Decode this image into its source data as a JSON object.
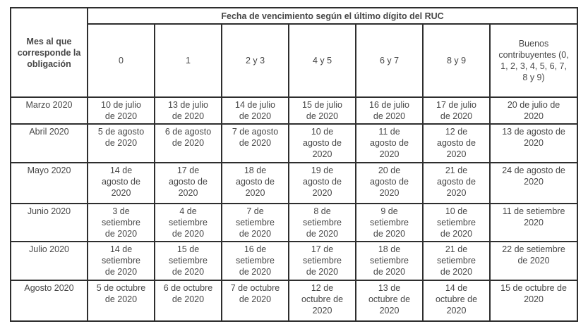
{
  "colors": {
    "background": "#ffffff",
    "text": "#474747",
    "header_text": "#3d3d3d",
    "border": "#2e2e2e"
  },
  "table": {
    "corner_header": "Mes al que corresponde la obligación",
    "span_header": "Fecha de vencimiento según el último dígito del RUC",
    "digit_headers": [
      "0",
      "1",
      "2 y 3",
      "4 y 5",
      "6 y 7",
      "8 y 9",
      "Buenos contribuyentes (0, 1, 2, 3, 4, 5, 6, 7, 8 y 9)"
    ],
    "rows": [
      {
        "month": "Marzo 2020",
        "dates": [
          "10 de julio de 2020",
          "13 de julio de 2020",
          "14 de julio de 2020",
          "15 de julio de 2020",
          "16 de julio de 2020",
          "17 de julio de 2020",
          "20 de julio de 2020"
        ]
      },
      {
        "month": "Abril 2020",
        "dates": [
          "5 de agosto de 2020",
          "6 de agosto de 2020",
          "7 de agosto de 2020",
          "10 de agosto de 2020",
          "11 de agosto de 2020",
          "12 de agosto de 2020",
          "13 de agosto de 2020"
        ]
      },
      {
        "month": "Mayo 2020",
        "dates": [
          "14 de agosto de 2020",
          "17 de agosto de 2020",
          "18 de agosto de 2020",
          "19 de agosto de 2020",
          "20 de agosto de 2020",
          "21 de agosto de 2020",
          "24 de agosto de 2020"
        ]
      },
      {
        "month": "Junio 2020",
        "dates": [
          "3 de setiembre de 2020",
          "4 de setiembre de 2020",
          "7 de setiembre de 2020",
          "8 de setiembre de 2020",
          "9 de setiembre de 2020",
          "10 de setiembre de 2020",
          "11 de setiembre 2020"
        ]
      },
      {
        "month": "Julio 2020",
        "dates": [
          "14 de setiembre de 2020",
          "15 de setiembre de 2020",
          "16 de setiembre de 2020",
          "17 de setiembre de 2020",
          "18 de setiembre de 2020",
          "21 de setiembre de 2020",
          "22 de setiembre de 2020"
        ]
      },
      {
        "month": "Agosto 2020",
        "dates": [
          "5 de octubre de 2020",
          "6 de octubre de 2020",
          "7 de octubre de 2020",
          "12 de octubre de 2020",
          "13 de octubre de 2020",
          "14 de octubre de 2020",
          "15 de octubre de 2020"
        ]
      }
    ]
  }
}
